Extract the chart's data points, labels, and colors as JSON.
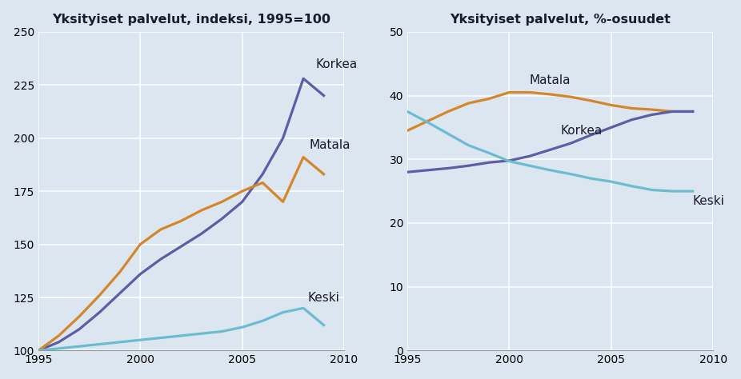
{
  "background_color": "#dce6f0",
  "left_title": "Yksityiset palvelut, indeksi, 1995=100",
  "right_title": "Yksityiset palvelut, %-osuudet",
  "years": [
    1995,
    1996,
    1997,
    1998,
    1999,
    2000,
    2001,
    2002,
    2003,
    2004,
    2005,
    2006,
    2007,
    2008,
    2009
  ],
  "left_korkea": [
    100,
    104,
    110,
    118,
    127,
    136,
    143,
    149,
    155,
    162,
    170,
    183,
    200,
    228,
    220
  ],
  "left_matala": [
    100,
    107,
    116,
    126,
    137,
    150,
    157,
    161,
    166,
    170,
    175,
    179,
    170,
    191,
    183
  ],
  "left_keski": [
    100,
    101,
    102,
    103,
    104,
    105,
    106,
    107,
    108,
    109,
    111,
    114,
    118,
    120,
    112
  ],
  "right_matala": [
    34.5,
    36.0,
    37.5,
    38.8,
    39.5,
    40.5,
    40.5,
    40.2,
    39.8,
    39.2,
    38.5,
    38.0,
    37.8,
    37.5,
    37.5
  ],
  "right_korkea": [
    28.0,
    28.3,
    28.6,
    29.0,
    29.5,
    29.8,
    30.5,
    31.5,
    32.5,
    33.8,
    35.0,
    36.2,
    37.0,
    37.5,
    37.5
  ],
  "right_keski": [
    37.5,
    35.8,
    34.0,
    32.2,
    31.0,
    29.7,
    29.0,
    28.3,
    27.7,
    27.0,
    26.5,
    25.8,
    25.2,
    25.0,
    25.0
  ],
  "color_korkea": "#5b5ea6",
  "color_matala": "#d4862a",
  "color_keski": "#6bbcd1",
  "left_ylim": [
    100,
    250
  ],
  "left_yticks": [
    100,
    125,
    150,
    175,
    200,
    225,
    250
  ],
  "right_ylim": [
    0,
    50
  ],
  "right_yticks": [
    0,
    10,
    20,
    30,
    40,
    50
  ],
  "xlim": [
    1995,
    2010
  ],
  "xticks": [
    1995,
    2000,
    2005,
    2010
  ],
  "label_korkea": "Korkea",
  "label_matala": "Matala",
  "label_keski": "Keski",
  "title_fontsize": 11.5,
  "label_fontsize": 11,
  "tick_fontsize": 10,
  "line_width": 2.3
}
